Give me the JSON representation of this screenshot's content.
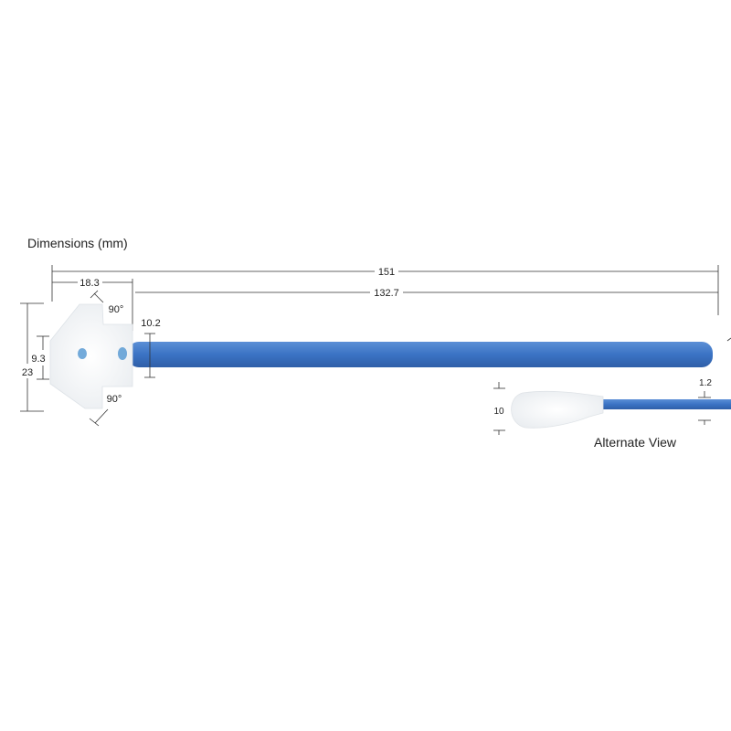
{
  "title": "Dimensions (mm)",
  "dimensions": {
    "overall_length": "151",
    "head_length": "18.3",
    "handle_length": "132.7",
    "head_width": "23",
    "head_neck_width": "9.3",
    "handle_width": "10.2",
    "angle_top": "90°",
    "angle_bottom": "90°"
  },
  "alternate_view": {
    "label": "Alternate View",
    "tip_height": "10",
    "thickness": "1.2"
  },
  "colors": {
    "handle": "#3b73c4",
    "foam": "#f4f6f8",
    "dots": "#5a9bd4"
  }
}
